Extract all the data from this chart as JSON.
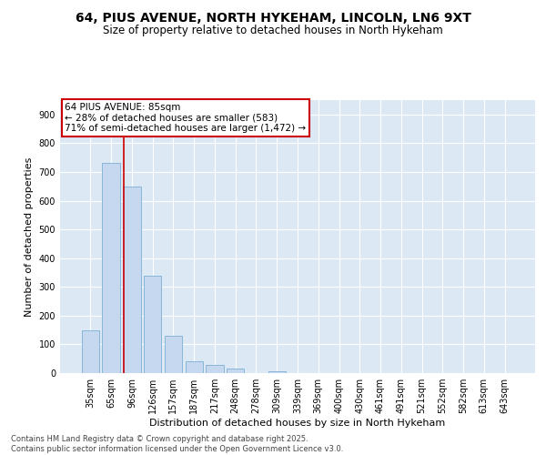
{
  "title1": "64, PIUS AVENUE, NORTH HYKEHAM, LINCOLN, LN6 9XT",
  "title2": "Size of property relative to detached houses in North Hykeham",
  "xlabel": "Distribution of detached houses by size in North Hykeham",
  "ylabel": "Number of detached properties",
  "categories": [
    "35sqm",
    "65sqm",
    "96sqm",
    "126sqm",
    "157sqm",
    "187sqm",
    "217sqm",
    "248sqm",
    "278sqm",
    "309sqm",
    "339sqm",
    "369sqm",
    "400sqm",
    "430sqm",
    "461sqm",
    "491sqm",
    "521sqm",
    "552sqm",
    "582sqm",
    "613sqm",
    "643sqm"
  ],
  "values": [
    150,
    730,
    650,
    340,
    130,
    42,
    30,
    15,
    0,
    5,
    0,
    0,
    0,
    0,
    0,
    0,
    0,
    0,
    0,
    0,
    0
  ],
  "bar_color": "#c5d8f0",
  "bar_edge_color": "#7bafd4",
  "bar_edge_width": 0.6,
  "vline_x": 1.62,
  "vline_color": "#cc0000",
  "annotation_text": "64 PIUS AVENUE: 85sqm\n← 28% of detached houses are smaller (583)\n71% of semi-detached houses are larger (1,472) →",
  "annotation_box_color": "#ffffff",
  "annotation_box_edge": "#cc0000",
  "annotation_fontsize": 7.5,
  "ylim": [
    0,
    950
  ],
  "yticks": [
    0,
    100,
    200,
    300,
    400,
    500,
    600,
    700,
    800,
    900
  ],
  "background_color": "#dce9f5",
  "footer_text": "Contains HM Land Registry data © Crown copyright and database right 2025.\nContains public sector information licensed under the Open Government Licence v3.0.",
  "title1_fontsize": 10,
  "title2_fontsize": 8.5,
  "xlabel_fontsize": 8,
  "ylabel_fontsize": 8,
  "footer_fontsize": 6,
  "tick_labelsize": 7,
  "ytick_labelsize": 7
}
